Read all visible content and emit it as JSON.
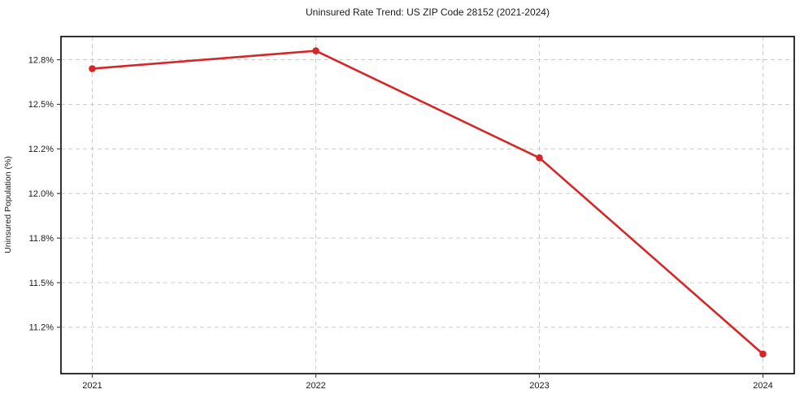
{
  "chart_data": {
    "type": "line",
    "title": "Uninsured Rate Trend: US ZIP Code 28152 (2021-2024)",
    "xlabel": "",
    "ylabel": "Uninsured Population (%)",
    "x": [
      2021,
      2022,
      2023,
      2024
    ],
    "x_labels": [
      "2021",
      "2022",
      "2023",
      "2024"
    ],
    "series": [
      {
        "name": "Uninsured rate",
        "values": [
          12.7,
          12.8,
          12.2,
          11.1
        ]
      }
    ],
    "yticks": [
      {
        "value": 12.75,
        "label": "12.8%"
      },
      {
        "value": 12.5,
        "label": "12.5%"
      },
      {
        "value": 12.25,
        "label": "12.2%"
      },
      {
        "value": 12.0,
        "label": "12.0%"
      },
      {
        "value": 11.75,
        "label": "11.8%"
      },
      {
        "value": 11.5,
        "label": "11.5%"
      },
      {
        "value": 11.25,
        "label": "11.2%"
      }
    ],
    "xlim": [
      2020.86,
      2024.14
    ],
    "ylim": [
      10.99,
      12.88
    ],
    "grid": "dashed",
    "legend": "none",
    "line_color": "#d62728",
    "marker": "circle",
    "background_color": "#ffffff"
  }
}
